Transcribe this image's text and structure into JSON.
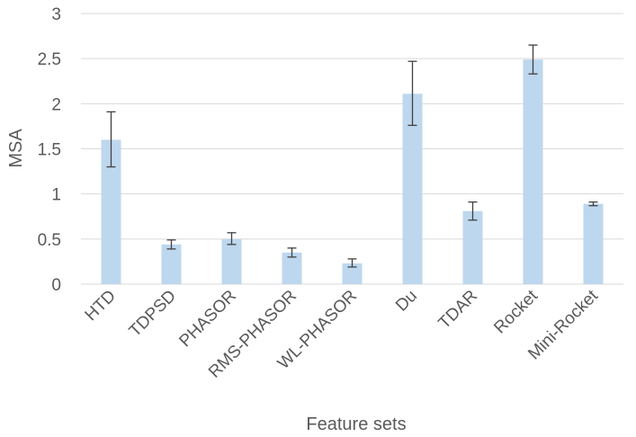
{
  "chart_data": {
    "type": "bar",
    "title": "",
    "xlabel": "Feature sets",
    "ylabel": "MSA",
    "ylim": [
      0,
      3
    ],
    "yticks": [
      0,
      0.5,
      1,
      1.5,
      2,
      2.5,
      3
    ],
    "ytick_labels": [
      "0",
      "0.5",
      "1",
      "1.5",
      "2",
      "2.5",
      "3"
    ],
    "grid": true,
    "legend": "none",
    "categories": [
      "HTD",
      "TDPSD",
      "PHASOR",
      "RMS-PHASOR",
      "WL-PHASOR",
      "Du",
      "TDAR",
      "Rocket",
      "Mini-Rocket"
    ],
    "values": [
      1.6,
      0.44,
      0.5,
      0.35,
      0.23,
      2.11,
      0.81,
      2.49,
      0.89
    ],
    "error_low": [
      1.3,
      0.39,
      0.44,
      0.3,
      0.19,
      1.76,
      0.71,
      2.33,
      0.87
    ],
    "error_high": [
      1.91,
      0.49,
      0.57,
      0.4,
      0.28,
      2.47,
      0.91,
      2.65,
      0.91
    ],
    "colors": {
      "bar": "#bdd7ee",
      "error_bar": "#404040",
      "grid": "#d9d9d9",
      "text": "#595959"
    }
  }
}
